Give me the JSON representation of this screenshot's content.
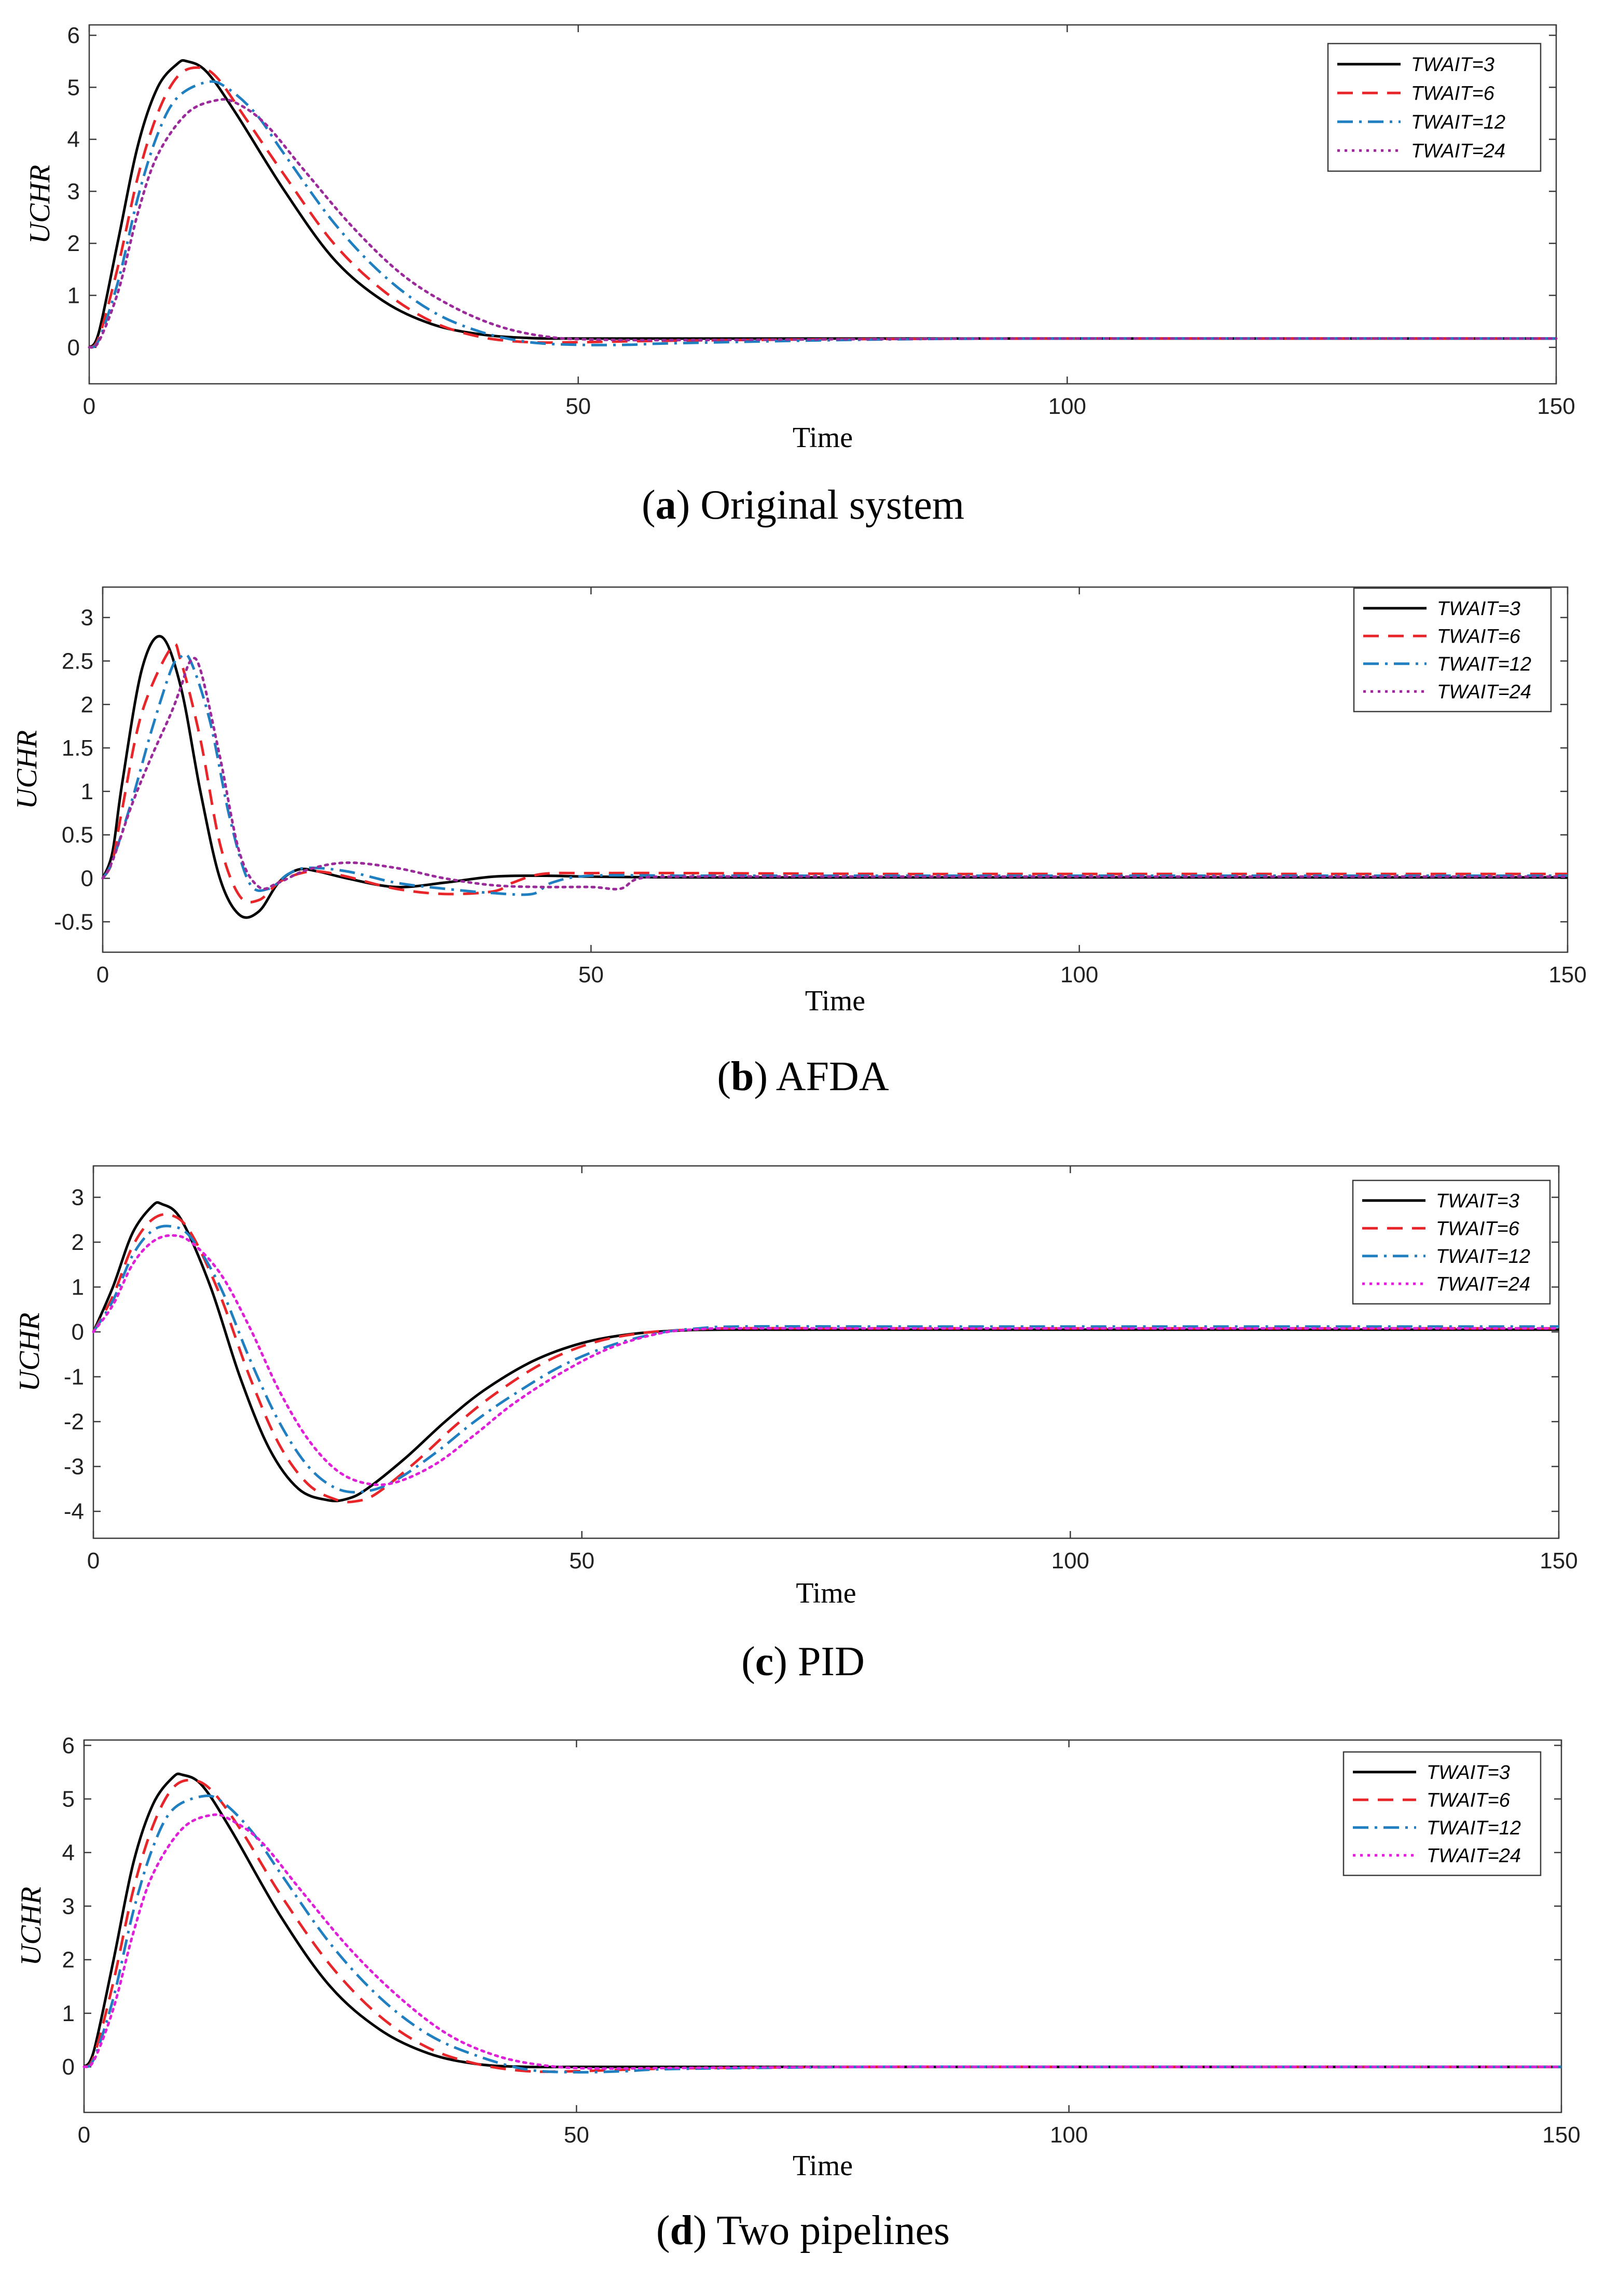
{
  "chart_data": [
    {
      "type": "line",
      "caption_letter": "a",
      "caption_text": " Original system",
      "xlabel": "Time",
      "ylabel": "UCHR",
      "xlim": [
        0,
        150
      ],
      "ylim": [
        -0.7,
        6.2
      ],
      "xticks": [
        0,
        50,
        100,
        150
      ],
      "yticks": [
        0,
        1,
        2,
        3,
        4,
        5,
        6
      ],
      "ytick_labels": [
        "0",
        "1",
        "2",
        "3",
        "4",
        "5",
        "6"
      ],
      "legend_position": "top-right",
      "series": [
        {
          "name": "TWAIT=3",
          "color": "#000000",
          "style": "solid",
          "x": [
            0,
            1,
            3,
            5,
            7,
            9,
            10,
            12,
            15,
            20,
            25,
            30,
            35,
            40,
            45,
            50,
            60,
            80,
            100,
            120,
            150
          ],
          "y": [
            0,
            0.3,
            2.1,
            3.9,
            5.0,
            5.45,
            5.5,
            5.3,
            4.5,
            3.0,
            1.7,
            0.9,
            0.45,
            0.25,
            0.18,
            0.17,
            0.17,
            0.17,
            0.17,
            0.17,
            0.17
          ]
        },
        {
          "name": "TWAIT=6",
          "color": "#e8262a",
          "style": "dashed",
          "x": [
            0,
            1,
            3,
            5,
            7,
            9,
            11,
            13,
            16,
            20,
            25,
            30,
            35,
            40,
            45,
            50,
            60,
            80,
            100,
            120,
            150
          ],
          "y": [
            0,
            0.2,
            1.6,
            3.3,
            4.5,
            5.2,
            5.38,
            5.2,
            4.4,
            3.3,
            2.0,
            1.1,
            0.5,
            0.2,
            0.1,
            0.1,
            0.13,
            0.16,
            0.17,
            0.17,
            0.17
          ]
        },
        {
          "name": "TWAIT=12",
          "color": "#1f7fc0",
          "style": "dashdot",
          "x": [
            0,
            1,
            3,
            5,
            7,
            9,
            12,
            14,
            17,
            20,
            25,
            30,
            35,
            40,
            45,
            50,
            55,
            60,
            80,
            100,
            150
          ],
          "y": [
            0,
            0.15,
            1.3,
            2.9,
            4.1,
            4.8,
            5.1,
            5.0,
            4.5,
            3.7,
            2.4,
            1.4,
            0.7,
            0.3,
            0.1,
            0.05,
            0.05,
            0.08,
            0.15,
            0.17,
            0.17
          ]
        },
        {
          "name": "TWAIT=24",
          "color": "#9b2a9b",
          "style": "dotted",
          "x": [
            0,
            1,
            3,
            5,
            7,
            10,
            13,
            15,
            18,
            22,
            27,
            32,
            37,
            42,
            47,
            52,
            60,
            80,
            100,
            150
          ],
          "y": [
            0,
            0.12,
            1.1,
            2.6,
            3.7,
            4.5,
            4.75,
            4.7,
            4.3,
            3.4,
            2.3,
            1.4,
            0.8,
            0.4,
            0.2,
            0.15,
            0.14,
            0.16,
            0.17,
            0.17
          ]
        }
      ]
    },
    {
      "type": "line",
      "caption_letter": "b",
      "caption_text": " AFDA",
      "xlabel": "Time",
      "ylabel": "UCHR",
      "xlim": [
        0,
        150
      ],
      "ylim": [
        -0.85,
        3.35
      ],
      "xticks": [
        0,
        50,
        100,
        150
      ],
      "yticks": [
        -0.5,
        0,
        0.5,
        1,
        1.5,
        2,
        2.5,
        3
      ],
      "ytick_labels": [
        "-0.5",
        "0",
        "0.5",
        "1",
        "1.5",
        "2",
        "2.5",
        "3"
      ],
      "legend_position": "top-right",
      "series": [
        {
          "name": "TWAIT=3",
          "color": "#000000",
          "style": "solid",
          "x": [
            0,
            1,
            2,
            4,
            6,
            8,
            10,
            12,
            14,
            16,
            18,
            20,
            22,
            25,
            30,
            35,
            40,
            45,
            50,
            60,
            80,
            100,
            150
          ],
          "y": [
            0,
            0.3,
            1.1,
            2.4,
            2.78,
            2.2,
            1.0,
            0.0,
            -0.42,
            -0.38,
            -0.05,
            0.1,
            0.08,
            0.0,
            -0.1,
            -0.05,
            0.02,
            0.03,
            0.02,
            0.01,
            0.01,
            0.01,
            0.01
          ]
        },
        {
          "name": "TWAIT=6",
          "color": "#e8262a",
          "style": "dashed",
          "x": [
            0,
            1,
            2,
            4,
            7,
            8,
            10,
            12,
            14,
            16,
            18,
            20,
            22,
            25,
            30,
            35,
            40,
            42,
            45,
            50,
            60,
            80,
            100,
            150
          ],
          "y": [
            0,
            0.2,
            0.8,
            1.9,
            2.65,
            2.5,
            1.6,
            0.4,
            -0.2,
            -0.25,
            -0.05,
            0.05,
            0.08,
            0.02,
            -0.12,
            -0.18,
            -0.15,
            -0.05,
            0.05,
            0.06,
            0.06,
            0.05,
            0.05,
            0.05
          ]
        },
        {
          "name": "TWAIT=12",
          "color": "#1f7fc0",
          "style": "dashdot",
          "x": [
            0,
            1,
            3,
            5,
            7,
            8,
            9,
            11,
            13,
            15,
            17,
            19,
            21,
            25,
            30,
            35,
            40,
            44,
            46,
            50,
            60,
            80,
            100,
            150
          ],
          "y": [
            0,
            0.2,
            0.9,
            1.7,
            2.4,
            2.55,
            2.5,
            1.8,
            0.7,
            -0.05,
            -0.12,
            0.05,
            0.12,
            0.08,
            -0.05,
            -0.12,
            -0.17,
            -0.18,
            -0.05,
            0.03,
            0.03,
            0.03,
            0.03,
            0.03
          ]
        },
        {
          "name": "TWAIT=24",
          "color": "#9b2a9b",
          "style": "dotted",
          "x": [
            0,
            1,
            3,
            5,
            7,
            8,
            9,
            10,
            12,
            14,
            16,
            18,
            21,
            25,
            30,
            35,
            40,
            45,
            50,
            53,
            55,
            60,
            80,
            100,
            150
          ],
          "y": [
            0,
            0.2,
            0.85,
            1.4,
            1.9,
            2.2,
            2.5,
            2.4,
            1.4,
            0.3,
            -0.1,
            -0.05,
            0.1,
            0.18,
            0.12,
            0.0,
            -0.08,
            -0.1,
            -0.1,
            -0.12,
            0.0,
            0.02,
            0.02,
            0.02,
            0.02
          ]
        }
      ]
    },
    {
      "type": "line",
      "caption_letter": "c",
      "caption_text": " PID",
      "xlabel": "Time",
      "ylabel": "UCHR",
      "xlim": [
        0,
        150
      ],
      "ylim": [
        -4.6,
        3.7
      ],
      "xticks": [
        0,
        50,
        100,
        150
      ],
      "yticks": [
        -4,
        -3,
        -2,
        -1,
        0,
        1,
        2,
        3
      ],
      "ytick_labels": [
        "-4",
        "-3",
        "-2",
        "-1",
        "0",
        "1",
        "2",
        "3"
      ],
      "legend_position": "top-right",
      "series": [
        {
          "name": "TWAIT=3",
          "color": "#000000",
          "style": "solid",
          "x": [
            0,
            2,
            4,
            6,
            7,
            9,
            12,
            15,
            18,
            21,
            24,
            26,
            28,
            32,
            36,
            40,
            45,
            50,
            55,
            60,
            65,
            80,
            100,
            150
          ],
          "y": [
            0,
            1.0,
            2.2,
            2.8,
            2.85,
            2.5,
            1.0,
            -1.0,
            -2.6,
            -3.5,
            -3.75,
            -3.72,
            -3.5,
            -2.8,
            -2.0,
            -1.3,
            -0.65,
            -0.25,
            -0.05,
            0.03,
            0.05,
            0.05,
            0.05,
            0.05
          ]
        },
        {
          "name": "TWAIT=6",
          "color": "#e8262a",
          "style": "dashed",
          "x": [
            0,
            2,
            4,
            6,
            8,
            10,
            13,
            16,
            19,
            22,
            25,
            27,
            29,
            33,
            37,
            41,
            46,
            51,
            56,
            61,
            65,
            80,
            100,
            150
          ],
          "y": [
            0,
            0.8,
            1.9,
            2.5,
            2.6,
            2.2,
            0.8,
            -1.0,
            -2.5,
            -3.4,
            -3.75,
            -3.77,
            -3.6,
            -2.9,
            -2.1,
            -1.4,
            -0.7,
            -0.25,
            -0.03,
            0.05,
            0.08,
            0.08,
            0.08,
            0.08
          ]
        },
        {
          "name": "TWAIT=12",
          "color": "#1f7fc0",
          "style": "dashdot",
          "x": [
            0,
            2,
            4,
            6,
            8,
            10,
            13,
            16,
            19,
            22,
            25,
            28,
            31,
            35,
            39,
            43,
            48,
            53,
            58,
            62,
            66,
            80,
            100,
            150
          ],
          "y": [
            0,
            0.7,
            1.7,
            2.25,
            2.35,
            2.1,
            1.0,
            -0.6,
            -2.0,
            -3.0,
            -3.5,
            -3.55,
            -3.3,
            -2.7,
            -2.0,
            -1.4,
            -0.75,
            -0.3,
            -0.02,
            0.08,
            0.12,
            0.12,
            0.12,
            0.12
          ]
        },
        {
          "name": "TWAIT=24",
          "color": "#e01fd8",
          "style": "dotted",
          "x": [
            0,
            2,
            4,
            6,
            8,
            10,
            13,
            16,
            19,
            22,
            25,
            28,
            31,
            35,
            39,
            43,
            48,
            53,
            58,
            62,
            66,
            80,
            100,
            150
          ],
          "y": [
            0,
            0.6,
            1.5,
            2.0,
            2.15,
            2.0,
            1.3,
            0.1,
            -1.3,
            -2.4,
            -3.1,
            -3.38,
            -3.35,
            -2.95,
            -2.3,
            -1.6,
            -0.9,
            -0.35,
            -0.03,
            0.06,
            0.08,
            0.08,
            0.08,
            0.08
          ]
        }
      ]
    },
    {
      "type": "line",
      "caption_letter": "d",
      "caption_text": " Two pipelines",
      "xlabel": "Time",
      "ylabel": "UCHR",
      "xlim": [
        0,
        150
      ],
      "ylim": [
        -0.85,
        6.1
      ],
      "xticks": [
        0,
        50,
        100,
        150
      ],
      "yticks": [
        0,
        1,
        2,
        3,
        4,
        5,
        6
      ],
      "ytick_labels": [
        "0",
        "1",
        "2",
        "3",
        "4",
        "5",
        "6"
      ],
      "legend_position": "top-right",
      "series": [
        {
          "name": "TWAIT=3",
          "color": "#000000",
          "style": "solid",
          "x": [
            0,
            1,
            3,
            5,
            7,
            9,
            10,
            12,
            15,
            20,
            25,
            30,
            35,
            40,
            45,
            50,
            60,
            80,
            100,
            150
          ],
          "y": [
            0,
            0.3,
            2.0,
            3.8,
            4.9,
            5.4,
            5.45,
            5.25,
            4.4,
            2.8,
            1.5,
            0.7,
            0.25,
            0.05,
            0.0,
            0.0,
            0.0,
            0.0,
            0.0,
            0.0
          ]
        },
        {
          "name": "TWAIT=6",
          "color": "#e8262a",
          "style": "dashed",
          "x": [
            0,
            1,
            3,
            5,
            7,
            9,
            11,
            13,
            16,
            20,
            25,
            30,
            35,
            40,
            45,
            50,
            60,
            80,
            100,
            150
          ],
          "y": [
            0,
            0.2,
            1.6,
            3.3,
            4.5,
            5.2,
            5.35,
            5.15,
            4.4,
            3.2,
            1.9,
            0.95,
            0.35,
            0.05,
            -0.08,
            -0.08,
            -0.03,
            0.0,
            0.0,
            0.0
          ]
        },
        {
          "name": "TWAIT=12",
          "color": "#1f7fc0",
          "style": "dashdot",
          "x": [
            0,
            1,
            3,
            5,
            7,
            9,
            12,
            14,
            17,
            20,
            25,
            30,
            35,
            40,
            45,
            50,
            55,
            60,
            80,
            100,
            150
          ],
          "y": [
            0,
            0.15,
            1.3,
            2.9,
            4.1,
            4.8,
            5.05,
            4.95,
            4.4,
            3.6,
            2.3,
            1.3,
            0.6,
            0.2,
            -0.05,
            -0.1,
            -0.08,
            -0.04,
            0.0,
            0.0,
            0.0
          ]
        },
        {
          "name": "TWAIT=24",
          "color": "#e01fd8",
          "style": "dotted",
          "x": [
            0,
            1,
            3,
            5,
            7,
            10,
            13,
            15,
            18,
            22,
            27,
            32,
            37,
            42,
            47,
            52,
            60,
            80,
            100,
            150
          ],
          "y": [
            0,
            0.12,
            1.1,
            2.5,
            3.6,
            4.45,
            4.7,
            4.6,
            4.2,
            3.3,
            2.2,
            1.3,
            0.6,
            0.2,
            0.02,
            -0.03,
            -0.02,
            0.0,
            0.0,
            0.0
          ]
        }
      ]
    }
  ]
}
